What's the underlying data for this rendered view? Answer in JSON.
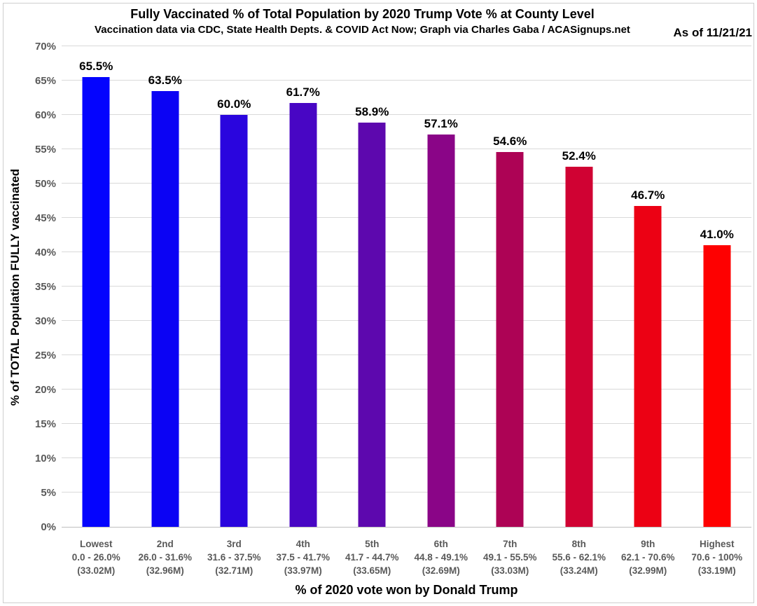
{
  "header": {
    "title": "Fully Vaccinated % of Total Population by 2020 Trump Vote % at County Level",
    "subtitle": "Vaccination data via CDC, State Health Depts. & COVID Act Now; Graph via Charles Gaba / ACASignups.net",
    "as_of": "As of 11/21/21"
  },
  "chart_data": {
    "type": "bar",
    "title": "Fully Vaccinated % of Total Population by 2020 Trump Vote % at County Level",
    "subtitle": "Vaccination data via CDC, State Health Depts. & COVID Act Now; Graph via Charles Gaba / ACASignups.net",
    "annotation": "As of 11/21/21",
    "xlabel": "% of 2020 vote won by Donald Trump",
    "ylabel": "% of TOTAL Population FULLY vaccinated",
    "ylim": [
      0,
      70
    ],
    "ytick_step": 5,
    "ytick_suffix": "%",
    "grid": true,
    "legend": "none",
    "categories": [
      {
        "rank": "Lowest",
        "range": "0.0 - 26.0%",
        "population": "(33.02M)"
      },
      {
        "rank": "2nd",
        "range": "26.0 - 31.6%",
        "population": "(32.96M)"
      },
      {
        "rank": "3rd",
        "range": "31.6 - 37.5%",
        "population": "(32.71M)"
      },
      {
        "rank": "4th",
        "range": "37.5 - 41.7%",
        "population": "(33.97M)"
      },
      {
        "rank": "5th",
        "range": "41.7 - 44.7%",
        "population": "(33.65M)"
      },
      {
        "rank": "6th",
        "range": "44.8 - 49.1%",
        "population": "(32.69M)"
      },
      {
        "rank": "7th",
        "range": "49.1 - 55.5%",
        "population": "(33.03M)"
      },
      {
        "rank": "8th",
        "range": "55.6 - 62.1%",
        "population": "(33.24M)"
      },
      {
        "rank": "9th",
        "range": "62.1 - 70.6%",
        "population": "(32.99M)"
      },
      {
        "rank": "Highest",
        "range": "70.6 - 100%",
        "population": "(33.19M)"
      }
    ],
    "values": [
      65.5,
      63.5,
      60.0,
      61.7,
      58.9,
      57.1,
      54.6,
      52.4,
      46.7,
      41.0
    ],
    "value_labels": [
      "65.5%",
      "63.5%",
      "60.0%",
      "61.7%",
      "58.9%",
      "57.1%",
      "54.6%",
      "52.4%",
      "46.7%",
      "41.0%"
    ],
    "bar_colors": [
      "#0404FE",
      "#0B03F4",
      "#2A05DE",
      "#4806C4",
      "#5D08AE",
      "#8A0587",
      "#AD0355",
      "#D00233",
      "#EC0114",
      "#FE0101"
    ],
    "gridline_color": "#D9D9D9",
    "axis_line_color": "#BFBFBF",
    "tick_label_color": "#595959",
    "text_color": "#000000"
  }
}
